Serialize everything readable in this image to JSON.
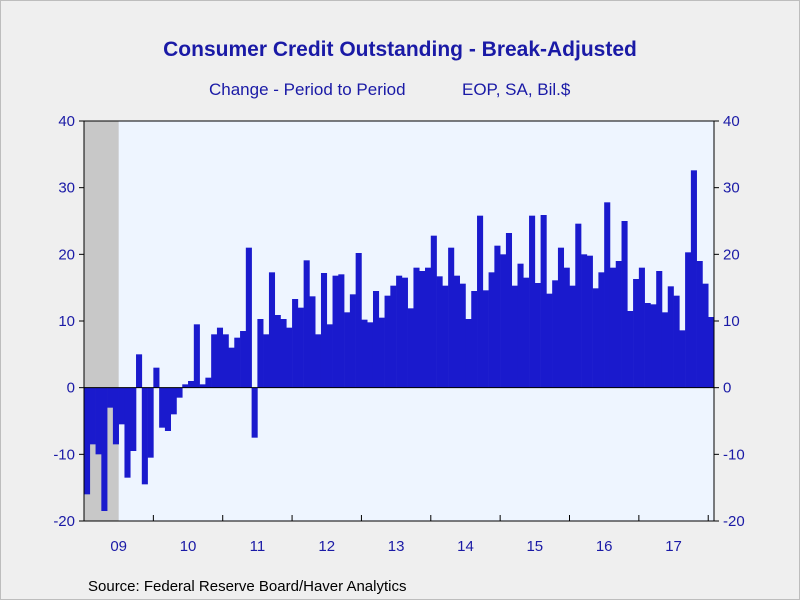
{
  "chart_data": {
    "type": "bar",
    "title": "Consumer Credit Outstanding - Break-Adjusted",
    "subtitle_left": "Change - Period to Period",
    "subtitle_right": "EOP, SA, Bil.$",
    "source": "Source:  Federal Reserve Board/Haver Analytics",
    "frequency": "monthly",
    "start": "2009-01",
    "x_tick_labels": [
      "09",
      "10",
      "11",
      "12",
      "13",
      "14",
      "15",
      "16",
      "17"
    ],
    "y_tick_labels": [
      "-20",
      "-10",
      "0",
      "10",
      "20",
      "30",
      "40"
    ],
    "ylim": [
      -20,
      40
    ],
    "y_ticks": [
      -20,
      -10,
      0,
      10,
      20,
      30,
      40
    ],
    "recession_shade": {
      "from": "2009-01",
      "to": "2009-06"
    },
    "grid": false,
    "values": [
      -16,
      -8.5,
      -10,
      -18.5,
      -3,
      -8.5,
      -5.5,
      -13.5,
      -9.5,
      5,
      -14.5,
      -10.5,
      3,
      -6,
      -6.5,
      -4,
      -1.5,
      0.5,
      1,
      9.5,
      0.5,
      1.5,
      8,
      9,
      8,
      6,
      7.5,
      8.5,
      21,
      -7.5,
      10.3,
      8,
      17.3,
      10.9,
      10.3,
      9,
      13.3,
      12,
      19.1,
      13.7,
      8,
      17.2,
      9.5,
      16.8,
      17,
      11.3,
      14,
      20.2,
      10.2,
      9.8,
      14.5,
      10.5,
      13.8,
      15.3,
      16.8,
      16.5,
      11.9,
      18,
      17.5,
      18,
      22.8,
      16.7,
      15.3,
      21,
      16.8,
      15.6,
      10.3,
      14.5,
      25.8,
      14.6,
      17.3,
      21.3,
      20,
      23.2,
      15.3,
      18.6,
      16.5,
      25.8,
      15.7,
      25.9,
      14.1,
      16.1,
      21,
      18,
      15.3,
      24.6,
      20,
      19.8,
      14.9,
      17.3,
      27.8,
      18,
      19,
      25,
      11.5,
      16.3,
      18,
      12.7,
      12.5,
      17.5,
      11.3,
      15.2,
      13.8,
      8.6,
      20.3,
      32.6,
      19,
      15.6,
      10.6
    ]
  },
  "colors": {
    "bar": "#1a1acd",
    "text": "#1a1aa6",
    "plot_bg": "#eef5ff",
    "recession": "#c8c8c8",
    "axis": "#000000"
  }
}
